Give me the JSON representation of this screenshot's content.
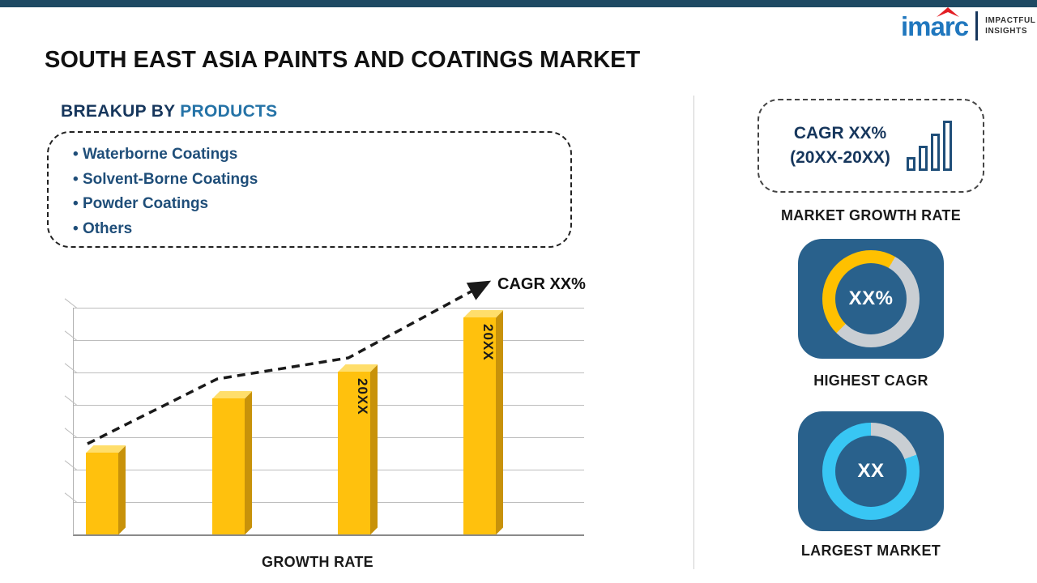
{
  "logo": {
    "brand": "imarc",
    "tagline_line1": "IMPACTFUL",
    "tagline_line2": "INSIGHTS"
  },
  "header": {
    "title": "SOUTH EAST ASIA PAINTS AND COATINGS MARKET"
  },
  "breakup": {
    "heading_prefix": "BREAKUP BY ",
    "heading_highlight": "PRODUCTS",
    "items": [
      "Waterborne Coatings",
      "Solvent-Borne Coatings",
      "Powder Coatings",
      "Others"
    ]
  },
  "chart_data": {
    "type": "bar",
    "categories": [
      "",
      "",
      "20XX",
      "20XX"
    ],
    "values": [
      30,
      50,
      60,
      80
    ],
    "ylim": [
      0,
      100
    ],
    "title": "",
    "xlabel": "GROWTH RATE",
    "ylabel": "",
    "grid": true,
    "bar_color": "#FFC10D",
    "trend_annotation": "CAGR XX%",
    "trend": "increasing dashed arrow over bars"
  },
  "sidebar": {
    "growth_box": {
      "line1": "CAGR XX%",
      "line2": "(20XX-20XX)"
    },
    "growth_box_label": "MARKET GROWTH RATE",
    "highest_cagr": {
      "value": "XX%",
      "label": "HIGHEST CAGR",
      "ring_colors": [
        "#FFC000",
        "#C9CED3"
      ]
    },
    "largest_market": {
      "value": "XX",
      "label": "LARGEST MARKET",
      "ring_colors": [
        "#38C6F4",
        "#C9CED3"
      ]
    }
  },
  "colors": {
    "topbar_navy": "#1E4A63",
    "tile_navy": "#29618C",
    "accent_blue": "#2573A7",
    "dark_navy_text": "#1F4E79",
    "gold": "#FFC10D",
    "cyan": "#38C6F4"
  }
}
